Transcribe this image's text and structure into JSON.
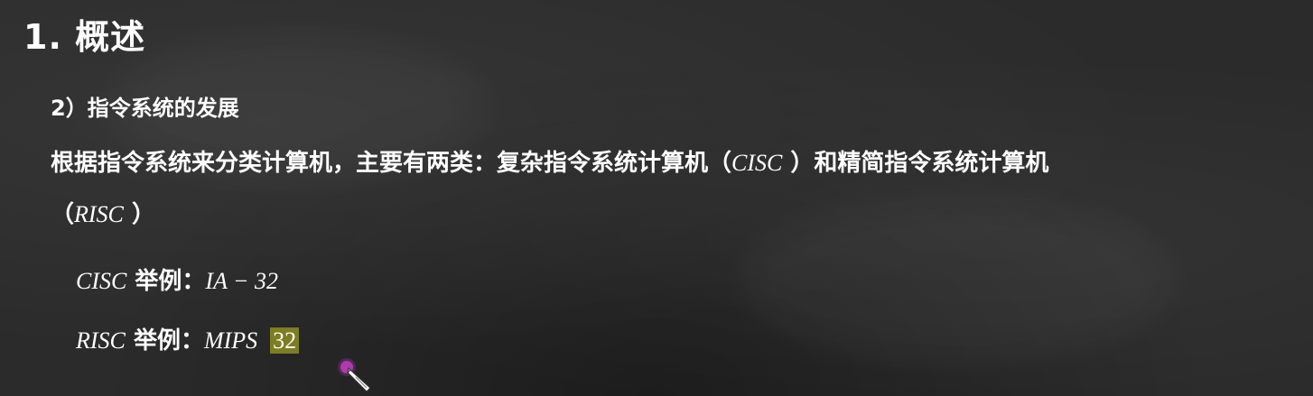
{
  "title": "1. 概述",
  "subtitle": "2）指令系统的发展",
  "paragraph": {
    "line1_prefix": "根据指令系统来分类计算机，主要有两类：复杂指令系统计算机（",
    "line1_cisc": "CISC",
    "line1_suffix": " ）和精简指令系统计算机",
    "line2_open": "（",
    "line2_risc": "RISC",
    "line2_close": " ）"
  },
  "examples": [
    {
      "term": "CISC",
      "label": " 举例：",
      "value": "IA − 32"
    },
    {
      "term": "RISC",
      "label": " 举例：",
      "value": "MIPS",
      "highlighted": "32"
    }
  ],
  "colors": {
    "background": "#2b2b2b",
    "text": "#ffffff",
    "highlight": "#7d7d22",
    "cursor_dot": "#c23cc2"
  },
  "icons": {
    "cursor": "pen-pointer-icon"
  }
}
